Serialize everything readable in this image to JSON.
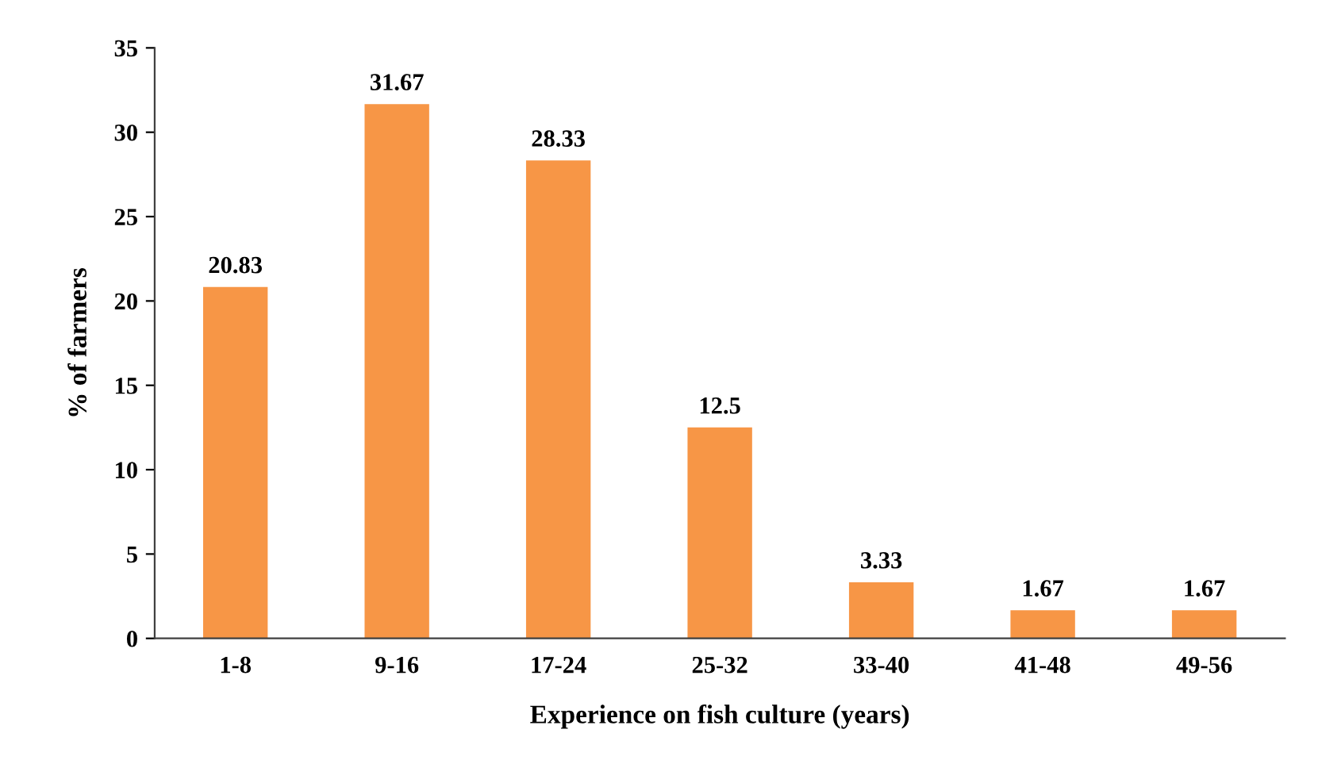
{
  "chart_data": {
    "type": "bar",
    "xlabel": "Experience on fish culture (years)",
    "ylabel": "% of farmers",
    "categories": [
      "1-8",
      "9-16",
      "17-24",
      "25-32",
      "33-40",
      "41-48",
      "49-56"
    ],
    "values": [
      20.83,
      31.67,
      28.33,
      12.5,
      3.33,
      1.67,
      1.67
    ],
    "color": "#f79646",
    "ylim": [
      0,
      35
    ],
    "yticks": [
      0,
      5,
      10,
      15,
      20,
      25,
      30,
      35
    ],
    "grid": false,
    "legend": false,
    "data_labels": true
  }
}
